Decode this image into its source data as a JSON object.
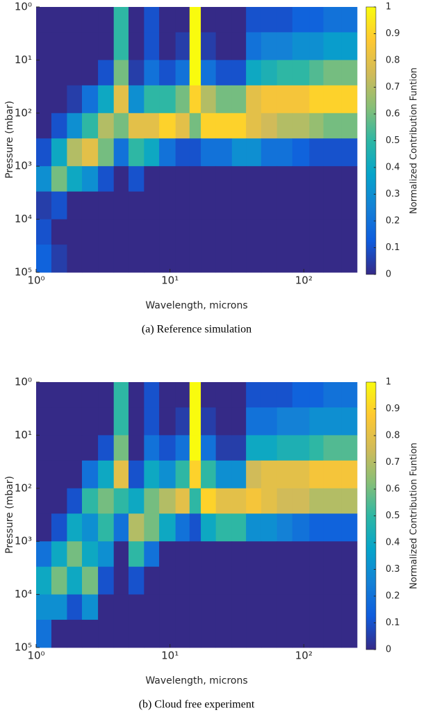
{
  "chart_data": [
    {
      "type": "heatmap",
      "caption": "(a) Reference simulation",
      "xlabel": "Wavelength, microns",
      "ylabel": "Pressure (mbar)",
      "colorbar_label": "Normalized Contribution Funtion",
      "log_x": true,
      "log_y": true,
      "y_reversed": true,
      "xlim": [
        1,
        250
      ],
      "ylim": [
        1,
        100000
      ],
      "xticks": [
        {
          "value": 1,
          "label": "10⁰"
        },
        {
          "value": 10,
          "label": "10¹"
        },
        {
          "value": 100,
          "label": "10²"
        }
      ],
      "yticks": [
        {
          "value": 1,
          "label": "10⁰"
        },
        {
          "value": 10,
          "label": "10¹"
        },
        {
          "value": 100,
          "label": "10²"
        },
        {
          "value": 1000,
          "label": "10³"
        },
        {
          "value": 10000,
          "label": "10⁴"
        },
        {
          "value": 100000,
          "label": "10⁵"
        }
      ],
      "zlim": [
        0,
        1
      ],
      "zticks": [
        0,
        0.1,
        0.2,
        0.3,
        0.4,
        0.5,
        0.6,
        0.7,
        0.8,
        0.9,
        1
      ],
      "colormap": [
        "#352a87",
        "#0f5cdd",
        "#1481d6",
        "#06a4ca",
        "#2eb7a4",
        "#87bf77",
        "#d1bb59",
        "#fec832",
        "#f9fb0e"
      ],
      "xbins": [
        1,
        1.3,
        1.7,
        2.2,
        2.9,
        3.8,
        4.9,
        6.4,
        8.3,
        11,
        14,
        17,
        22,
        29,
        37,
        48,
        63,
        82,
        110,
        140,
        190,
        250
      ],
      "ybins": [
        1,
        3,
        10,
        30,
        100,
        300,
        1000,
        3000,
        10000,
        30000,
        100000
      ],
      "z": [
        [
          0,
          0,
          0,
          0,
          0,
          0.5,
          0,
          0.1,
          0,
          0,
          1,
          0,
          0,
          0,
          0.1,
          0.1,
          0.1,
          0.15,
          0.15,
          0.2,
          0.2
        ],
        [
          0,
          0,
          0,
          0,
          0,
          0.5,
          0,
          0.1,
          0,
          0.05,
          1,
          0.05,
          0,
          0,
          0.2,
          0.25,
          0.25,
          0.3,
          0.3,
          0.35,
          0.35
        ],
        [
          0,
          0,
          0,
          0,
          0.1,
          0.6,
          0.05,
          0.2,
          0.1,
          0.2,
          1,
          0.2,
          0.1,
          0.1,
          0.4,
          0.45,
          0.5,
          0.5,
          0.55,
          0.6,
          0.6
        ],
        [
          0,
          0,
          0.05,
          0.2,
          0.4,
          0.8,
          0.3,
          0.5,
          0.5,
          0.6,
          0.9,
          0.7,
          0.6,
          0.6,
          0.8,
          0.85,
          0.85,
          0.85,
          0.9,
          0.9,
          0.9
        ],
        [
          0,
          0.1,
          0.3,
          0.5,
          0.7,
          0.6,
          0.8,
          0.8,
          0.9,
          0.8,
          0.6,
          0.9,
          0.9,
          0.9,
          0.8,
          0.75,
          0.7,
          0.7,
          0.65,
          0.6,
          0.6
        ],
        [
          0.1,
          0.4,
          0.7,
          0.8,
          0.6,
          0.2,
          0.5,
          0.4,
          0.2,
          0.1,
          0.1,
          0.2,
          0.2,
          0.3,
          0.3,
          0.2,
          0.2,
          0.15,
          0.1,
          0.1,
          0.1
        ],
        [
          0.3,
          0.6,
          0.4,
          0.3,
          0.1,
          0,
          0.1,
          0,
          0,
          0,
          0,
          0,
          0,
          0,
          0,
          0,
          0,
          0,
          0,
          0,
          0
        ],
        [
          0.05,
          0.1,
          0,
          0,
          0,
          0,
          0,
          0,
          0,
          0,
          0,
          0,
          0,
          0,
          0,
          0,
          0,
          0,
          0,
          0,
          0
        ],
        [
          0.1,
          0,
          0,
          0,
          0,
          0,
          0,
          0,
          0,
          0,
          0,
          0,
          0,
          0,
          0,
          0,
          0,
          0,
          0,
          0,
          0
        ],
        [
          0.15,
          0.05,
          0,
          0,
          0,
          0,
          0,
          0,
          0,
          0,
          0,
          0,
          0,
          0,
          0,
          0,
          0,
          0,
          0,
          0,
          0
        ]
      ]
    },
    {
      "type": "heatmap",
      "caption": "(b) Cloud free experiment",
      "xlabel": "Wavelength, microns",
      "ylabel": "Pressure (mbar)",
      "colorbar_label": "Normalized Contribution Funtion",
      "log_x": true,
      "log_y": true,
      "y_reversed": true,
      "xlim": [
        1,
        250
      ],
      "ylim": [
        1,
        100000
      ],
      "xticks": [
        {
          "value": 1,
          "label": "10⁰"
        },
        {
          "value": 10,
          "label": "10¹"
        },
        {
          "value": 100,
          "label": "10²"
        }
      ],
      "yticks": [
        {
          "value": 1,
          "label": "10⁰"
        },
        {
          "value": 10,
          "label": "10¹"
        },
        {
          "value": 100,
          "label": "10²"
        },
        {
          "value": 1000,
          "label": "10³"
        },
        {
          "value": 10000,
          "label": "10⁴"
        },
        {
          "value": 100000,
          "label": "10⁵"
        }
      ],
      "zlim": [
        0,
        1
      ],
      "zticks": [
        0,
        0.1,
        0.2,
        0.3,
        0.4,
        0.5,
        0.6,
        0.7,
        0.8,
        0.9,
        1
      ],
      "colormap": [
        "#352a87",
        "#0f5cdd",
        "#1481d6",
        "#06a4ca",
        "#2eb7a4",
        "#87bf77",
        "#d1bb59",
        "#fec832",
        "#f9fb0e"
      ],
      "xbins": [
        1,
        1.3,
        1.7,
        2.2,
        2.9,
        3.8,
        4.9,
        6.4,
        8.3,
        11,
        14,
        17,
        22,
        29,
        37,
        48,
        63,
        82,
        110,
        140,
        190,
        250
      ],
      "ybins": [
        1,
        3,
        10,
        30,
        100,
        300,
        1000,
        3000,
        10000,
        30000,
        100000
      ],
      "z": [
        [
          0,
          0,
          0,
          0,
          0,
          0.5,
          0,
          0.1,
          0,
          0,
          1,
          0,
          0,
          0,
          0.1,
          0.1,
          0.1,
          0.15,
          0.15,
          0.2,
          0.2
        ],
        [
          0,
          0,
          0,
          0,
          0,
          0.5,
          0,
          0.1,
          0,
          0.05,
          1,
          0.05,
          0,
          0,
          0.2,
          0.2,
          0.25,
          0.25,
          0.3,
          0.3,
          0.3
        ],
        [
          0,
          0,
          0,
          0,
          0.1,
          0.6,
          0,
          0.2,
          0.1,
          0.2,
          1,
          0.2,
          0.05,
          0.05,
          0.4,
          0.4,
          0.45,
          0.45,
          0.5,
          0.55,
          0.55
        ],
        [
          0,
          0,
          0,
          0.2,
          0.4,
          0.8,
          0.1,
          0.4,
          0.3,
          0.5,
          0.9,
          0.5,
          0.3,
          0.3,
          0.75,
          0.8,
          0.8,
          0.8,
          0.85,
          0.85,
          0.85
        ],
        [
          0,
          0,
          0.1,
          0.5,
          0.6,
          0.5,
          0.4,
          0.6,
          0.7,
          0.8,
          0.5,
          0.9,
          0.8,
          0.8,
          0.85,
          0.8,
          0.75,
          0.75,
          0.7,
          0.7,
          0.7
        ],
        [
          0,
          0.1,
          0.4,
          0.3,
          0.5,
          0.2,
          0.7,
          0.6,
          0.4,
          0.2,
          0.1,
          0.4,
          0.5,
          0.5,
          0.3,
          0.3,
          0.25,
          0.2,
          0.15,
          0.15,
          0.15
        ],
        [
          0.2,
          0.4,
          0.6,
          0.4,
          0.3,
          0,
          0.5,
          0.2,
          0,
          0,
          0,
          0,
          0,
          0,
          0,
          0,
          0,
          0,
          0,
          0,
          0
        ],
        [
          0.4,
          0.6,
          0.4,
          0.6,
          0.1,
          0,
          0.1,
          0,
          0,
          0,
          0,
          0,
          0,
          0,
          0,
          0,
          0,
          0,
          0,
          0,
          0
        ],
        [
          0.3,
          0.3,
          0.1,
          0.3,
          0,
          0,
          0,
          0,
          0,
          0,
          0,
          0,
          0,
          0,
          0,
          0,
          0,
          0,
          0,
          0,
          0
        ],
        [
          0.2,
          0,
          0,
          0,
          0,
          0,
          0,
          0,
          0,
          0,
          0,
          0,
          0,
          0,
          0,
          0,
          0,
          0,
          0,
          0,
          0
        ]
      ]
    }
  ]
}
